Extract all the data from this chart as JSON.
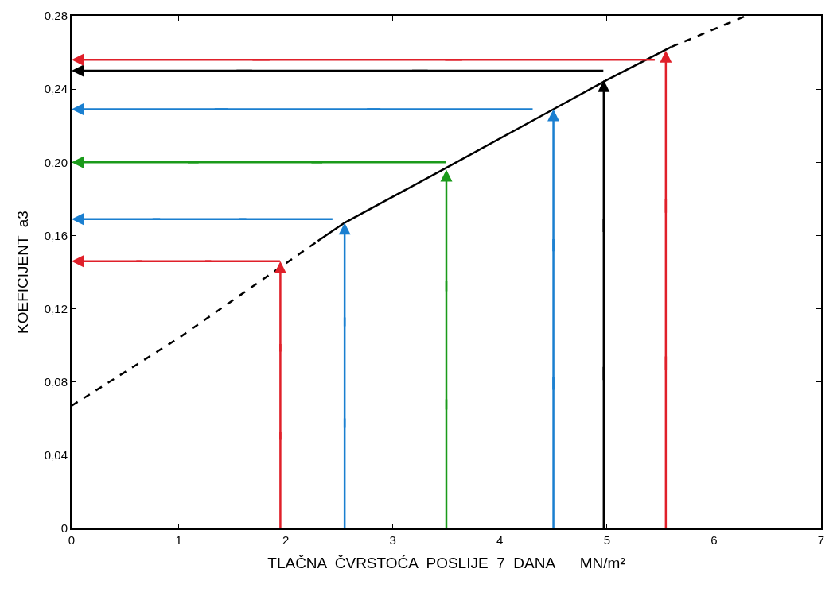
{
  "chart_data": {
    "type": "line",
    "xlabel": "TLAČNA  ČVRSTOĆA  POSLIJE  7  DANA      MN/m²",
    "ylabel": "KOEFICIJENT  a3",
    "xlim": [
      0,
      7
    ],
    "xticks": [
      0,
      1,
      2,
      3,
      4,
      5,
      6,
      7
    ],
    "ylim": [
      0,
      0.28
    ],
    "yticks": [
      {
        "value": 0,
        "label": "0"
      },
      {
        "value": 0.04,
        "label": "0,04"
      },
      {
        "value": 0.08,
        "label": "0,08"
      },
      {
        "value": 0.12,
        "label": "0,12"
      },
      {
        "value": 0.16,
        "label": "0,16"
      },
      {
        "value": 0.2,
        "label": "0,20"
      },
      {
        "value": 0.24,
        "label": "0,24"
      },
      {
        "value": 0.28,
        "label": "0,28"
      }
    ],
    "series": [
      {
        "color": "#000000",
        "line_style": "dashed",
        "marker": "none",
        "x": [
          0,
          1,
          2.3
        ],
        "values": [
          0.067,
          0.104,
          0.157
        ]
      },
      {
        "color": "#000000",
        "line_style": "solid",
        "marker": "none",
        "x": [
          2.3,
          2.55,
          3.5,
          4.5,
          5,
          5.6
        ],
        "values": [
          0.157,
          0.167,
          0.197,
          0.229,
          0.245,
          0.263
        ]
      },
      {
        "color": "#000000",
        "line_style": "dashed",
        "marker": "none",
        "x": [
          5.6,
          6.3
        ],
        "values": [
          0.263,
          0.28
        ]
      }
    ]
  }
}
